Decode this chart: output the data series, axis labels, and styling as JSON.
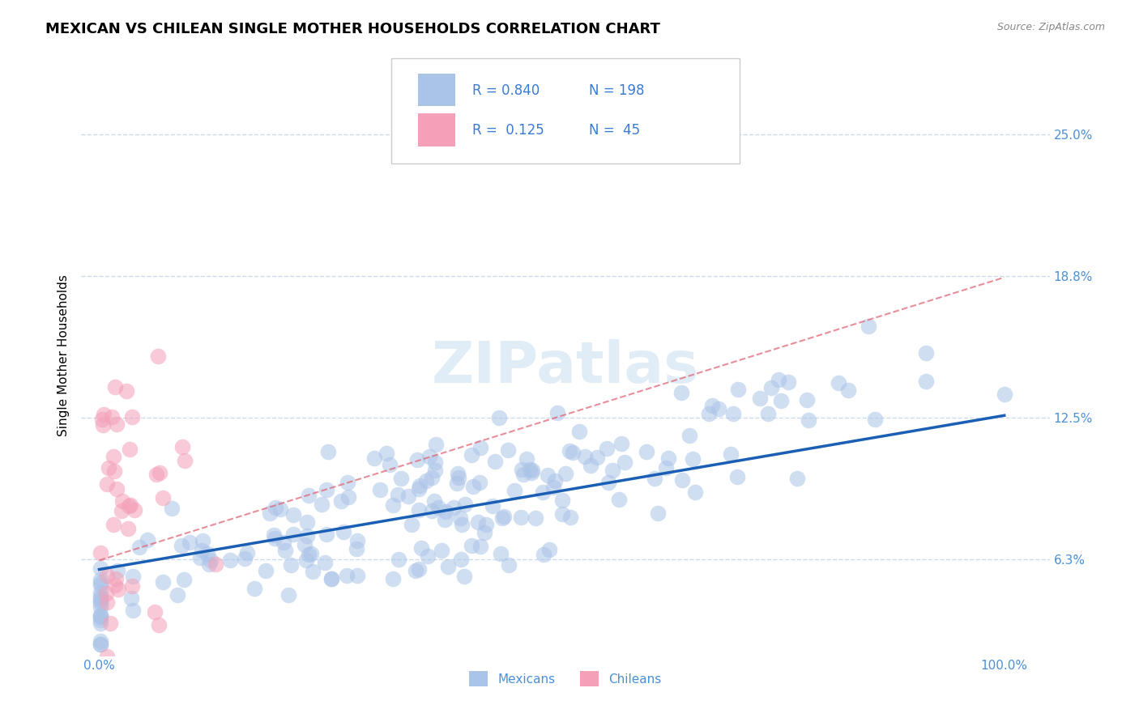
{
  "title": "MEXICAN VS CHILEAN SINGLE MOTHER HOUSEHOLDS CORRELATION CHART",
  "source": "Source: ZipAtlas.com",
  "ylabel": "Single Mother Households",
  "xlim": [
    -0.02,
    1.05
  ],
  "ylim": [
    0.02,
    0.285
  ],
  "yticks": [
    0.0625,
    0.125,
    0.1875,
    0.25
  ],
  "ytick_labels": [
    "6.3%",
    "12.5%",
    "18.8%",
    "25.0%"
  ],
  "xtick_labels": [
    "0.0%",
    "100.0%"
  ],
  "xticks": [
    0.0,
    1.0
  ],
  "mexican_R": 0.84,
  "mexican_N": 198,
  "chilean_R": 0.125,
  "chilean_N": 45,
  "mexican_color": "#aac4e8",
  "chilean_color": "#f4a0b8",
  "mexican_line_color": "#1a5fb4",
  "chilean_line_color": "#e06878",
  "legend_color": "#3a7bd5",
  "watermark": "ZIPatlas",
  "background_color": "#ffffff",
  "grid_color": "#c8d8ea",
  "title_fontsize": 13,
  "axis_label_fontsize": 11,
  "tick_label_color": "#4a90d9",
  "tick_label_fontsize": 11,
  "mexican_line_intercept": 0.058,
  "mexican_line_slope": 0.068,
  "chilean_line_intercept": 0.062,
  "chilean_line_slope": 0.125
}
